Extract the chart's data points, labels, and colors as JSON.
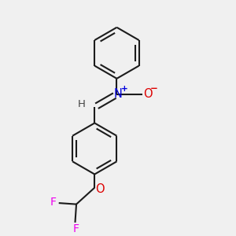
{
  "background_color": "#f0f0f0",
  "bond_color": "#1c1c1c",
  "N_color": "#0000dd",
  "O_color": "#dd0000",
  "F_color": "#ee00ee",
  "H_color": "#444444",
  "bond_lw": 1.5,
  "figsize": [
    3.0,
    3.0
  ],
  "dpi": 100,
  "xlim": [
    0.15,
    0.85
  ],
  "ylim": [
    0.02,
    0.98
  ]
}
